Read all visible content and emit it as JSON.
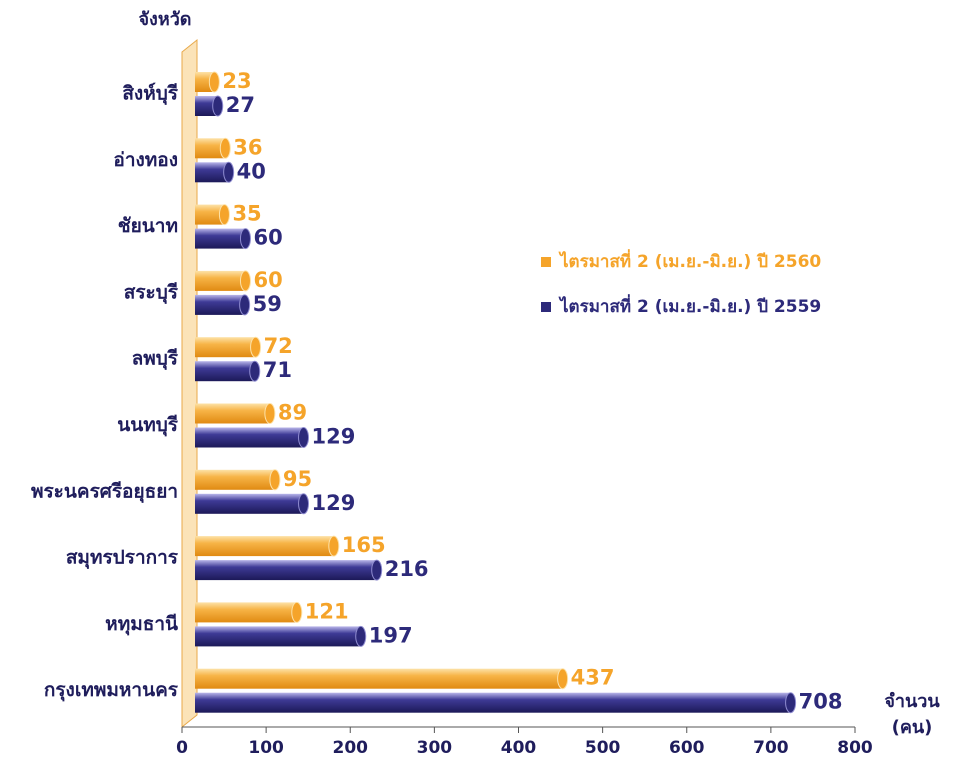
{
  "chart_data": {
    "type": "bar",
    "orientation": "horizontal",
    "ylabel": "จังหวัด",
    "xlabel": [
      "จำนวน",
      "(คน)"
    ],
    "categories": [
      "สิงห์บุรี",
      "อ่างทอง",
      "ชัยนาท",
      "สระบุรี",
      "ลพบุรี",
      "นนทบุรี",
      "พระนครศรีอยุธยา",
      "สมุทรปราการ",
      "หทุมธานี",
      "กรุงเทพมหานคร"
    ],
    "series": [
      {
        "name": "ไตรมาสที่ 2 (เม.ย.-มิ.ย.) ปี 2560",
        "color": "#f5a42a",
        "values": [
          23,
          36,
          35,
          60,
          72,
          89,
          95,
          165,
          121,
          437
        ]
      },
      {
        "name": "ไตรมาสที่ 2 (เม.ย.-มิ.ย.) ปี 2559",
        "color": "#2d2a7a",
        "values": [
          27,
          40,
          60,
          59,
          71,
          129,
          129,
          216,
          197,
          708
        ]
      }
    ],
    "xlim": [
      0,
      800
    ],
    "xticks": [
      0,
      100,
      200,
      300,
      400,
      500,
      600,
      700,
      800
    ],
    "legend": "right"
  }
}
